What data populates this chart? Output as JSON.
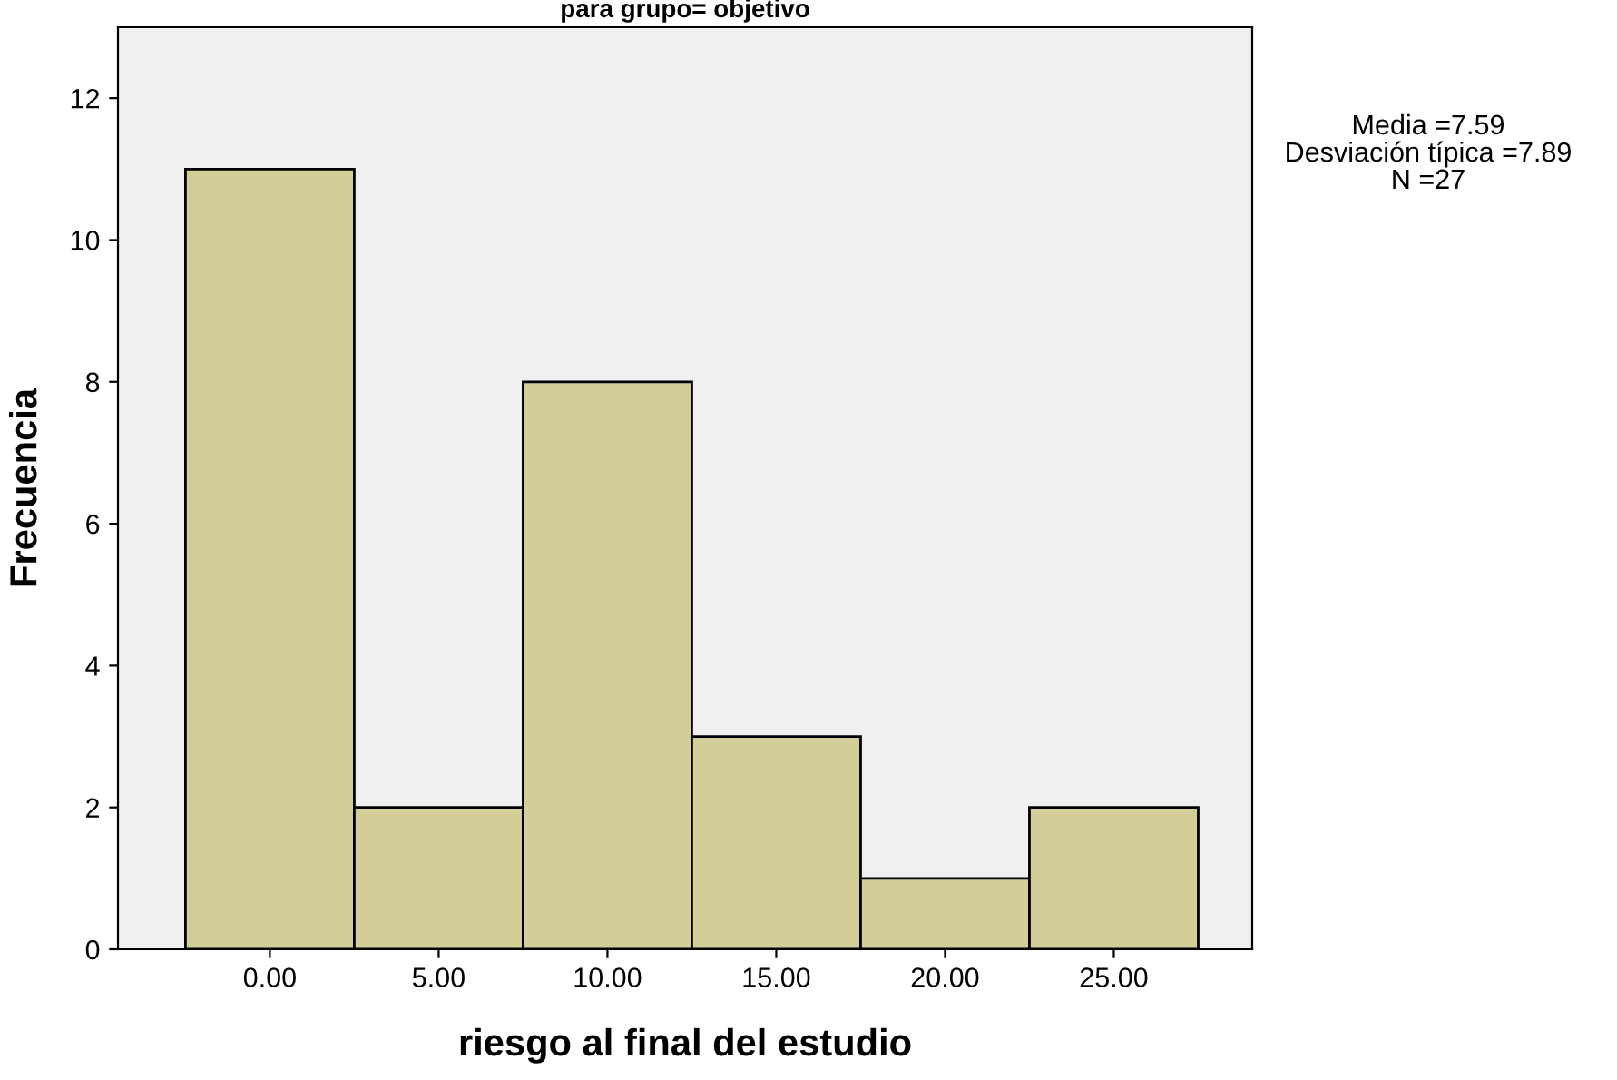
{
  "chart_data": {
    "type": "histogram",
    "title": "para grupo= objetivo",
    "xlabel": "riesgo al final del estudio",
    "ylabel": "Frecuencia",
    "bins": [
      -2.5,
      2.5,
      7.5,
      12.5,
      17.5,
      22.5,
      27.5
    ],
    "values": [
      11,
      2,
      8,
      3,
      1,
      2
    ],
    "color": "#d3ce97",
    "xlim": [
      -4.5,
      29.1
    ],
    "xticks": [
      {
        "value": 0,
        "label": "0.00"
      },
      {
        "value": 5,
        "label": "5.00"
      },
      {
        "value": 10,
        "label": "10.00"
      },
      {
        "value": 15,
        "label": "15.00"
      },
      {
        "value": 20,
        "label": "20.00"
      },
      {
        "value": 25,
        "label": "25.00"
      }
    ],
    "ylim": [
      0,
      13
    ],
    "yticks": [
      0,
      2,
      4,
      6,
      8,
      10,
      12
    ],
    "grid": false,
    "annotations": [
      "Media =7.59",
      "Desviación típica =7.89",
      "N =27"
    ]
  }
}
